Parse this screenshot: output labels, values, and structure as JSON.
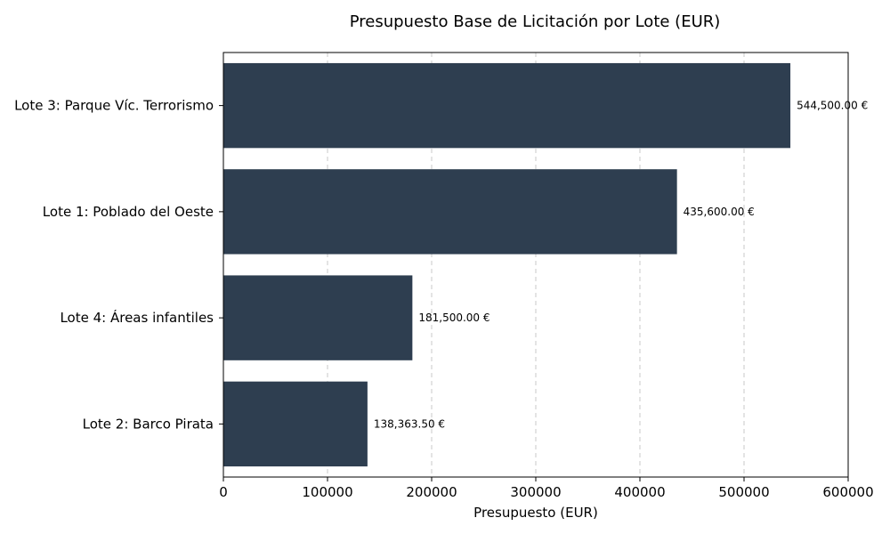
{
  "chart_data": {
    "type": "bar",
    "orientation": "horizontal",
    "title": "Presupuesto Base de Licitación por Lote (EUR)",
    "xlabel": "Presupuesto (EUR)",
    "ylabel": "",
    "categories": [
      "Lote 3: Parque Víc. Terrorismo",
      "Lote 1: Poblado del Oeste",
      "Lote 4: Áreas infantiles",
      "Lote 2: Barco Pirata"
    ],
    "values": [
      544500.0,
      435600.0,
      181500.0,
      138363.5
    ],
    "data_labels": [
      "544,500.00 €",
      "435,600.00 €",
      "181,500.00 €",
      "138,363.50 €"
    ],
    "xlim": [
      0,
      600000
    ],
    "xticks": [
      0,
      100000,
      200000,
      300000,
      400000,
      500000,
      600000
    ],
    "xtick_labels": [
      "0",
      "100000",
      "200000",
      "300000",
      "400000",
      "500000",
      "600000"
    ],
    "grid": "vertical dashed",
    "bar_color": "#2e3e50",
    "grid_color": "#c8c8c8"
  }
}
